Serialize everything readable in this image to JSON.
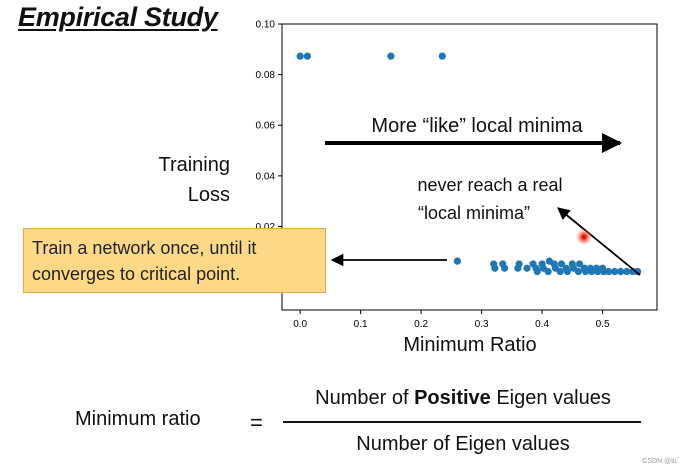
{
  "slide": {
    "title": "Empirical Study",
    "ylabel_line1": "Training",
    "ylabel_line2": "Loss",
    "xlabel": "Minimum Ratio",
    "arrow_text": "More “like” local minima",
    "note_line1": "never reach a real",
    "note_line2": "“local minima”",
    "callout_line1": "Train a network once, until it",
    "callout_line2": "converges to critical point.",
    "formula": {
      "lhs": "Minimum ratio",
      "equals": "=",
      "numerator_before": "Number of ",
      "numerator_bold": "Positive",
      "numerator_after": " Eigen values",
      "denominator": "Number of Eigen values"
    },
    "watermark": "CSDN @luˇ"
  },
  "chart_data": {
    "type": "scatter",
    "title": "",
    "xlabel": "Minimum Ratio",
    "ylabel": "Training Loss",
    "xlim": [
      -0.03,
      0.59
    ],
    "ylim": [
      -0.013,
      0.1
    ],
    "xticks": [
      "0.0",
      "0.1",
      "0.2",
      "0.3",
      "0.4",
      "0.5"
    ],
    "yticks": [
      "0.02",
      "0.04",
      "0.06",
      "0.08",
      "0.10"
    ],
    "grid": false,
    "color": "#1f77b4",
    "series": [
      {
        "x": [
          0.0,
          0.012,
          0.15,
          0.235,
          0.26,
          0.32,
          0.322,
          0.335,
          0.338,
          0.36,
          0.362,
          0.375,
          0.385,
          0.39,
          0.392,
          0.4,
          0.402,
          0.41,
          0.412,
          0.42,
          0.422,
          0.43,
          0.432,
          0.44,
          0.442,
          0.45,
          0.452,
          0.46,
          0.462,
          0.47,
          0.472,
          0.48,
          0.482,
          0.49,
          0.492,
          0.5,
          0.502,
          0.51,
          0.52,
          0.53,
          0.54,
          0.55,
          0.558
        ],
        "y": [
          0.0873,
          0.0873,
          0.0873,
          0.0873,
          0.0063,
          0.0052,
          0.0035,
          0.0052,
          0.0035,
          0.0035,
          0.0052,
          0.0035,
          0.0052,
          0.0035,
          0.0022,
          0.0052,
          0.0035,
          0.0022,
          0.0063,
          0.0052,
          0.0035,
          0.0022,
          0.0052,
          0.0035,
          0.0022,
          0.0052,
          0.0035,
          0.0022,
          0.0052,
          0.0035,
          0.0022,
          0.0035,
          0.0022,
          0.0035,
          0.0022,
          0.0035,
          0.0022,
          0.0022,
          0.0022,
          0.0022,
          0.0022,
          0.0022,
          0.0022
        ]
      }
    ]
  }
}
